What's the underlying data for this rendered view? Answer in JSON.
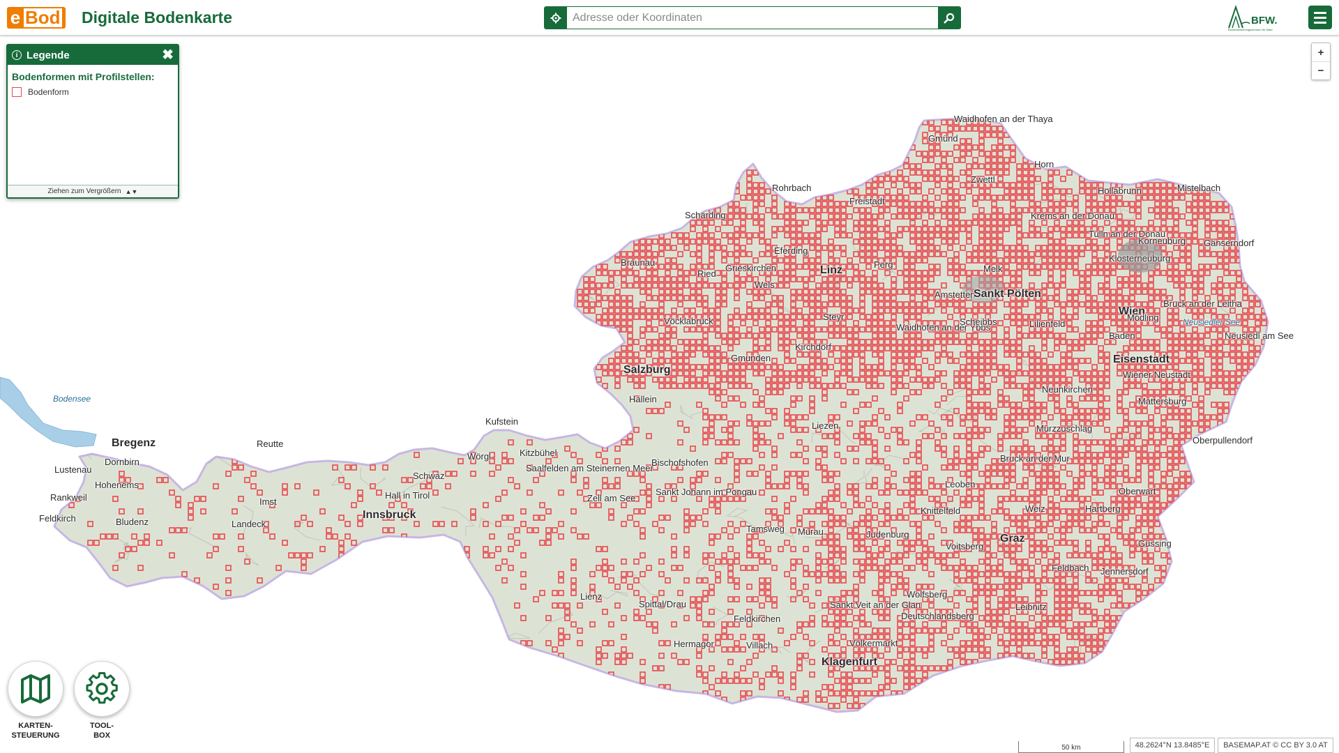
{
  "header": {
    "logo_letter": "e",
    "logo_rest": "Bod",
    "title": "Digitale Bodenkarte",
    "search_placeholder": "Adresse oder Koordinaten",
    "org_logo": "BFW.",
    "org_logo_subtitle": "Bundesforschungszentrum für Wald",
    "menu_icon": "hamburger-menu-icon"
  },
  "legend": {
    "title": "Legende",
    "section_title": "Bodenformen mit Profilstellen:",
    "items": [
      {
        "label": "Bodenform",
        "color": "#e8474e"
      }
    ],
    "resize_hint": "Ziehen zum Vergrößern"
  },
  "zoom": {
    "in": "+",
    "out": "−"
  },
  "tools": [
    {
      "label": "KARTEN-\nSTEUERUNG",
      "icon": "map-icon"
    },
    {
      "label": "TOOL-\nBOX",
      "icon": "gear-icon"
    }
  ],
  "status": {
    "scale": "50 km",
    "coordinates": "48.2624°N 13.8485°E",
    "attribution": "BASEMAP.AT © CC BY 3.0 AT"
  },
  "colors": {
    "primary_green": "#176b3a",
    "logo_orange": "#ef7d00",
    "profile_red": "#e8474e",
    "terrain": "#dde3d4"
  },
  "map": {
    "places": [
      {
        "name": "Waidhofen an der Thaya",
        "major": false
      },
      {
        "name": "Gmünd",
        "major": false
      },
      {
        "name": "Zwettl",
        "major": false
      },
      {
        "name": "Horn",
        "major": false
      },
      {
        "name": "Hollabrunn",
        "major": false
      },
      {
        "name": "Mistelbach",
        "major": false
      },
      {
        "name": "Rohrbach",
        "major": false
      },
      {
        "name": "Freistadt",
        "major": false
      },
      {
        "name": "Krems an der Donau",
        "major": false
      },
      {
        "name": "Tulln an der Donau",
        "major": false
      },
      {
        "name": "Korneuburg",
        "major": false
      },
      {
        "name": "Gänserndorf",
        "major": false
      },
      {
        "name": "Schärding",
        "major": false
      },
      {
        "name": "Braunau",
        "major": false
      },
      {
        "name": "Ried",
        "major": false
      },
      {
        "name": "Grieskirchen",
        "major": false
      },
      {
        "name": "Eferding",
        "major": false
      },
      {
        "name": "Linz",
        "major": true
      },
      {
        "name": "Perg",
        "major": false
      },
      {
        "name": "Melk",
        "major": false
      },
      {
        "name": "Klosterneuburg",
        "major": false
      },
      {
        "name": "Wels",
        "major": false
      },
      {
        "name": "Amstetten",
        "major": false
      },
      {
        "name": "Sankt Pölten",
        "major": true
      },
      {
        "name": "Wien",
        "major": true
      },
      {
        "name": "Vöcklabruck",
        "major": false
      },
      {
        "name": "Steyr",
        "major": false
      },
      {
        "name": "Waidhofen an der Ybbs",
        "major": false
      },
      {
        "name": "Scheibbs",
        "major": false
      },
      {
        "name": "Lilienfeld",
        "major": false
      },
      {
        "name": "Mödling",
        "major": false
      },
      {
        "name": "Bruck an der Leitha",
        "major": false
      },
      {
        "name": "Neusiedl am See",
        "major": false
      },
      {
        "name": "Baden",
        "major": false
      },
      {
        "name": "Eisenstadt",
        "major": true
      },
      {
        "name": "Salzburg",
        "major": true
      },
      {
        "name": "Gmunden",
        "major": false
      },
      {
        "name": "Kirchdorf",
        "major": false
      },
      {
        "name": "Wiener Neustadt",
        "major": false
      },
      {
        "name": "Mattersburg",
        "major": false
      },
      {
        "name": "Hallein",
        "major": false
      },
      {
        "name": "Neunkirchen",
        "major": false
      },
      {
        "name": "Liezen",
        "major": false
      },
      {
        "name": "Mürzzuschlag",
        "major": false
      },
      {
        "name": "Oberpullendorf",
        "major": false
      },
      {
        "name": "Kufstein",
        "major": false
      },
      {
        "name": "Kitzbühel",
        "major": false
      },
      {
        "name": "Bregenz",
        "major": true
      },
      {
        "name": "Dornbirn",
        "major": false
      },
      {
        "name": "Reutte",
        "major": false
      },
      {
        "name": "Wörgl",
        "major": false
      },
      {
        "name": "Saalfelden am Steinernen Meer",
        "major": false
      },
      {
        "name": "Bischofshofen",
        "major": false
      },
      {
        "name": "Bruck an der Mur",
        "major": false
      },
      {
        "name": "Lustenau",
        "major": false
      },
      {
        "name": "Hohenems",
        "major": false
      },
      {
        "name": "Schwaz",
        "major": false
      },
      {
        "name": "Zell am See",
        "major": false
      },
      {
        "name": "Sankt Johann im Pongau",
        "major": false
      },
      {
        "name": "Leoben",
        "major": false
      },
      {
        "name": "Oberwart",
        "major": false
      },
      {
        "name": "Rankweil",
        "major": false
      },
      {
        "name": "Imst",
        "major": false
      },
      {
        "name": "Hall in Tirol",
        "major": false
      },
      {
        "name": "Innsbruck",
        "major": true
      },
      {
        "name": "Weiz",
        "major": false
      },
      {
        "name": "Hartberg",
        "major": false
      },
      {
        "name": "Feldkirch",
        "major": false
      },
      {
        "name": "Bludenz",
        "major": false
      },
      {
        "name": "Landeck",
        "major": false
      },
      {
        "name": "Tamsweg",
        "major": false
      },
      {
        "name": "Murau",
        "major": false
      },
      {
        "name": "Judenburg",
        "major": false
      },
      {
        "name": "Knittelfeld",
        "major": false
      },
      {
        "name": "Voitsberg",
        "major": false
      },
      {
        "name": "Graz",
        "major": true
      },
      {
        "name": "Güssing",
        "major": false
      },
      {
        "name": "Feldbach",
        "major": false
      },
      {
        "name": "Jennersdorf",
        "major": false
      },
      {
        "name": "Lienz",
        "major": false
      },
      {
        "name": "Wolfsberg",
        "major": false
      },
      {
        "name": "Spittal/Drau",
        "major": false
      },
      {
        "name": "Sankt Veit an der Glan",
        "major": false
      },
      {
        "name": "Deutschlandsberg",
        "major": false
      },
      {
        "name": "Leibnitz",
        "major": false
      },
      {
        "name": "Feldkirchen",
        "major": false
      },
      {
        "name": "Hermagor",
        "major": false
      },
      {
        "name": "Villach",
        "major": false
      },
      {
        "name": "Völkermarkt",
        "major": false
      },
      {
        "name": "Klagenfurt",
        "major": true
      }
    ],
    "lakes": [
      "Bodensee",
      "Neusiedler See"
    ]
  }
}
